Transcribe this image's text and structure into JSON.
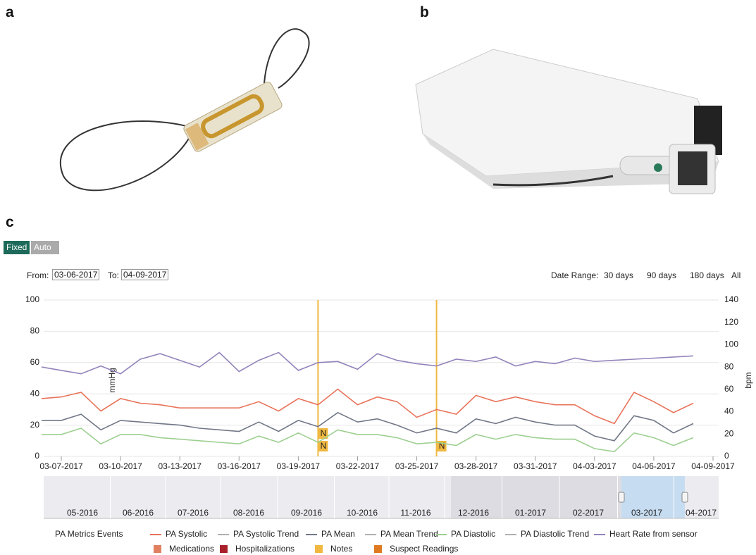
{
  "panels": {
    "a": "a",
    "b": "b",
    "c": "c"
  },
  "controls": {
    "scale_buttons": [
      "Fixed",
      "Auto"
    ],
    "from_label": "From:",
    "from": "03-06-2017",
    "to_label": "To:",
    "to": "04-09-2017",
    "range_label": "Date Range:",
    "ranges": [
      "30 days",
      "90 days",
      "180 days",
      "All"
    ]
  },
  "chart_data": {
    "type": "line",
    "ylabel": "mmHg",
    "y2label": "bpm",
    "xlim": [
      "03-06-2017",
      "04-09-2017"
    ],
    "xticks": [
      "03-07-2017",
      "03-10-2017",
      "03-13-2017",
      "03-16-2017",
      "03-19-2017",
      "03-22-2017",
      "03-25-2017",
      "03-28-2017",
      "03-31-2017",
      "04-03-2017",
      "04-06-2017",
      "04-09-2017"
    ],
    "ylim": [
      0,
      100
    ],
    "yticks": [
      0,
      20,
      40,
      60,
      80,
      100
    ],
    "y2lim": [
      0,
      140
    ],
    "y2ticks": [
      0,
      20,
      40,
      60,
      80,
      100,
      120,
      140
    ],
    "x": [
      "03-06-2017",
      "03-07-2017",
      "03-08-2017",
      "03-09-2017",
      "03-10-2017",
      "03-11-2017",
      "03-12-2017",
      "03-13-2017",
      "03-14-2017",
      "03-15-2017",
      "03-16-2017",
      "03-17-2017",
      "03-18-2017",
      "03-19-2017",
      "03-20-2017",
      "03-21-2017",
      "03-22-2017",
      "03-23-2017",
      "03-24-2017",
      "03-25-2017",
      "03-26-2017",
      "03-27-2017",
      "03-28-2017",
      "03-29-2017",
      "03-30-2017",
      "03-31-2017",
      "04-01-2017",
      "04-02-2017",
      "04-03-2017",
      "04-04-2017",
      "04-05-2017",
      "04-06-2017",
      "04-07-2017",
      "04-08-2017"
    ],
    "series": [
      {
        "name": "PA Systolic",
        "color": "#e8735a",
        "values": [
          37,
          38,
          41,
          29,
          37,
          34,
          33,
          31,
          31,
          31,
          31,
          35,
          29,
          37,
          33,
          43,
          33,
          38,
          35,
          25,
          30,
          27,
          39,
          35,
          38,
          35,
          33,
          33,
          26,
          21,
          41,
          35,
          28,
          34
        ]
      },
      {
        "name": "PA Mean",
        "color": "#727888",
        "values": [
          23,
          23,
          27,
          17,
          23,
          22,
          21,
          20,
          18,
          17,
          16,
          22,
          16,
          23,
          19,
          28,
          22,
          24,
          20,
          15,
          18,
          15,
          24,
          21,
          25,
          22,
          20,
          20,
          13,
          10,
          26,
          23,
          15,
          21
        ]
      },
      {
        "name": "PA Diastolic",
        "color": "#9dcf90",
        "values": [
          14,
          14,
          18,
          8,
          14,
          14,
          12,
          11,
          10,
          9,
          8,
          13,
          9,
          15,
          9,
          17,
          14,
          14,
          12,
          8,
          9,
          7,
          14,
          11,
          14,
          12,
          11,
          11,
          5,
          3,
          15,
          12,
          7,
          12
        ]
      },
      {
        "name": "Heart Rate from sensor",
        "color": "#9384bb",
        "axis": "y2",
        "values": [
          80,
          77,
          74,
          81,
          74,
          87,
          92,
          86,
          80,
          93,
          76,
          86,
          93,
          77,
          84,
          85,
          78,
          92,
          86,
          83,
          81,
          87,
          85,
          89,
          81,
          85,
          83,
          88,
          85,
          86,
          87,
          88,
          89,
          90
        ]
      }
    ],
    "notes": [
      {
        "x": "03-20-2017",
        "label": "N"
      },
      {
        "x": "03-20-2017",
        "label": "N"
      },
      {
        "x": "03-26-2017",
        "label": "N"
      }
    ],
    "navigator": [
      "05-2016",
      "06-2016",
      "07-2016",
      "08-2016",
      "09-2016",
      "10-2016",
      "11-2016",
      "12-2016",
      "01-2017",
      "02-2017",
      "03-2017",
      "04-2017"
    ],
    "legend_title": "PA Metrics Events",
    "legend": [
      {
        "name": "PA Systolic",
        "color": "#e8735a"
      },
      {
        "name": "PA Systolic Trend",
        "color": "#b0b0b0"
      },
      {
        "name": "PA Mean",
        "color": "#727888"
      },
      {
        "name": "PA Mean Trend",
        "color": "#b0b0b0"
      },
      {
        "name": "PA Diastolic",
        "color": "#9dcf90"
      },
      {
        "name": "PA Diastolic Trend",
        "color": "#b0b0b0"
      },
      {
        "name": "Heart Rate from sensor",
        "color": "#9384bb"
      }
    ],
    "events": [
      {
        "name": "Medications",
        "color": "#e08060"
      },
      {
        "name": "Hospitalizations",
        "color": "#a8202a"
      },
      {
        "name": "Notes",
        "color": "#f0b840"
      },
      {
        "name": "Suspect Readings",
        "color": "#e07a20"
      }
    ]
  }
}
